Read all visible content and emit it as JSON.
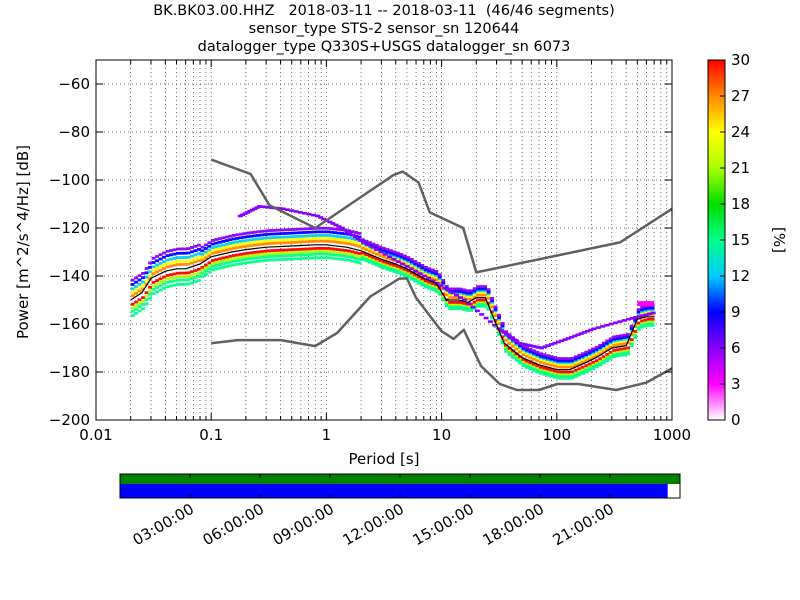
{
  "title_lines": [
    "BK.BK03.00.HHZ   2018-03-11 -- 2018-03-11  (46/46 segments)",
    "sensor_type STS-2 sensor_sn 120644",
    "datalogger_type Q330S+USGS datalogger_sn 6073"
  ],
  "chart_data": [
    {
      "type": "heatmap",
      "xlabel": "Period [s]",
      "ylabel": "Power [m^2/s^4/Hz] [dB]",
      "xscale": "log",
      "xlim": [
        0.01,
        1000
      ],
      "ylim": [
        -200,
        -50
      ],
      "x_ticks": [
        0.01,
        0.1,
        1,
        10,
        100,
        1000
      ],
      "x_tick_labels": [
        "0.01",
        "0.1",
        "1",
        "10",
        "100",
        "1000"
      ],
      "y_ticks": [
        -200,
        -180,
        -160,
        -140,
        -120,
        -100,
        -80,
        -60
      ],
      "y_tick_labels": [
        "−200",
        "−180",
        "−160",
        "−140",
        "−120",
        "−100",
        "−80",
        "−60"
      ],
      "grid": true,
      "colorbar": {
        "label": "[%]",
        "min": 0,
        "max": 30,
        "ticks": [
          0,
          3,
          6,
          9,
          12,
          15,
          18,
          21,
          24,
          27,
          30
        ],
        "colors": [
          "#ffffff",
          "#ff00ff",
          "#8800ff",
          "#0000ff",
          "#00ccff",
          "#00ff88",
          "#00dd00",
          "#aaff00",
          "#ffff00",
          "#ff8800",
          "#ff0000"
        ]
      },
      "series": [
        {
          "role": "new-high-noise-model",
          "color": "#606060",
          "points": [
            [
              0.1,
              -91.5
            ],
            [
              0.22,
              -97.5
            ],
            [
              0.32,
              -110.5
            ],
            [
              0.8,
              -120
            ],
            [
              3.8,
              -98
            ],
            [
              4.6,
              -96.5
            ],
            [
              6.3,
              -101
            ],
            [
              7.9,
              -113.5
            ],
            [
              15.4,
              -120
            ],
            [
              20,
              -138.5
            ],
            [
              354,
              -126
            ],
            [
              1000,
              -112
            ]
          ]
        },
        {
          "role": "new-low-noise-model",
          "color": "#606060",
          "points": [
            [
              0.1,
              -168
            ],
            [
              0.17,
              -166.7
            ],
            [
              0.4,
              -166.7
            ],
            [
              0.8,
              -169.2
            ],
            [
              1.24,
              -163.7
            ],
            [
              2.4,
              -148.6
            ],
            [
              4.3,
              -141.1
            ],
            [
              5.0,
              -141
            ],
            [
              6.0,
              -149
            ],
            [
              10,
              -163
            ],
            [
              12.7,
              -166.2
            ],
            [
              15.6,
              -162.4
            ],
            [
              22,
              -177.5
            ],
            [
              32,
              -185
            ],
            [
              45,
              -187.5
            ],
            [
              70,
              -187.5
            ],
            [
              101,
              -185
            ],
            [
              154,
              -185
            ],
            [
              328,
              -187.5
            ],
            [
              600,
              -184.4
            ],
            [
              1000,
              -178.5
            ]
          ]
        },
        {
          "role": "mode",
          "color": "#000000",
          "points": [
            [
              0.02,
              -150
            ],
            [
              0.025,
              -147
            ],
            [
              0.03,
              -141
            ],
            [
              0.04,
              -138
            ],
            [
              0.05,
              -137
            ],
            [
              0.06,
              -137
            ],
            [
              0.08,
              -135
            ],
            [
              0.1,
              -132
            ],
            [
              0.15,
              -130
            ],
            [
              0.2,
              -129
            ],
            [
              0.3,
              -128
            ],
            [
              0.5,
              -127.5
            ],
            [
              0.8,
              -127
            ],
            [
              1,
              -127
            ],
            [
              1.5,
              -128
            ],
            [
              2,
              -129.5
            ],
            [
              3,
              -133
            ],
            [
              4,
              -135
            ],
            [
              5,
              -137
            ],
            [
              7,
              -141
            ],
            [
              9,
              -143
            ],
            [
              11,
              -150
            ],
            [
              14,
              -150
            ],
            [
              17,
              -151
            ],
            [
              20,
              -149
            ],
            [
              24,
              -149
            ],
            [
              28,
              -157
            ],
            [
              35,
              -168
            ],
            [
              50,
              -174
            ],
            [
              70,
              -177
            ],
            [
              100,
              -179
            ],
            [
              130,
              -179
            ],
            [
              180,
              -176
            ],
            [
              220,
              -174
            ],
            [
              300,
              -170
            ],
            [
              400,
              -169
            ],
            [
              500,
              -158
            ],
            [
              600,
              -157
            ],
            [
              700,
              -157
            ]
          ]
        }
      ],
      "spread": [
        {
          "role": "noise-outliers",
          "points": [
            [
              0.17,
              -115
            ],
            [
              0.25,
              -111
            ],
            [
              0.4,
              -112
            ],
            [
              0.8,
              -115
            ],
            [
              1.3,
              -120
            ],
            [
              2,
              -126
            ],
            [
              4,
              -134
            ],
            [
              8,
              -142
            ],
            [
              15,
              -150
            ],
            [
              30,
              -162
            ],
            [
              45,
              -168
            ],
            [
              70,
              -170
            ],
            [
              120,
              -166
            ],
            [
              200,
              -162
            ],
            [
              400,
              -158
            ],
            [
              700,
              -155
            ]
          ]
        },
        {
          "role": "magenta-block",
          "points": [
            [
              500,
              -151.5
            ],
            [
              700,
              -151.5
            ]
          ]
        }
      ]
    },
    {
      "type": "timeline",
      "time_tick_labels": [
        "03:00:00",
        "06:00:00",
        "09:00:00",
        "12:00:00",
        "15:00:00",
        "18:00:00",
        "21:00:00"
      ],
      "bars": [
        {
          "role": "available-data",
          "color": "#008000",
          "fraction": 1.0
        },
        {
          "role": "used-psd-segments",
          "color": "#0000ff",
          "fraction": 0.978
        }
      ]
    }
  ]
}
